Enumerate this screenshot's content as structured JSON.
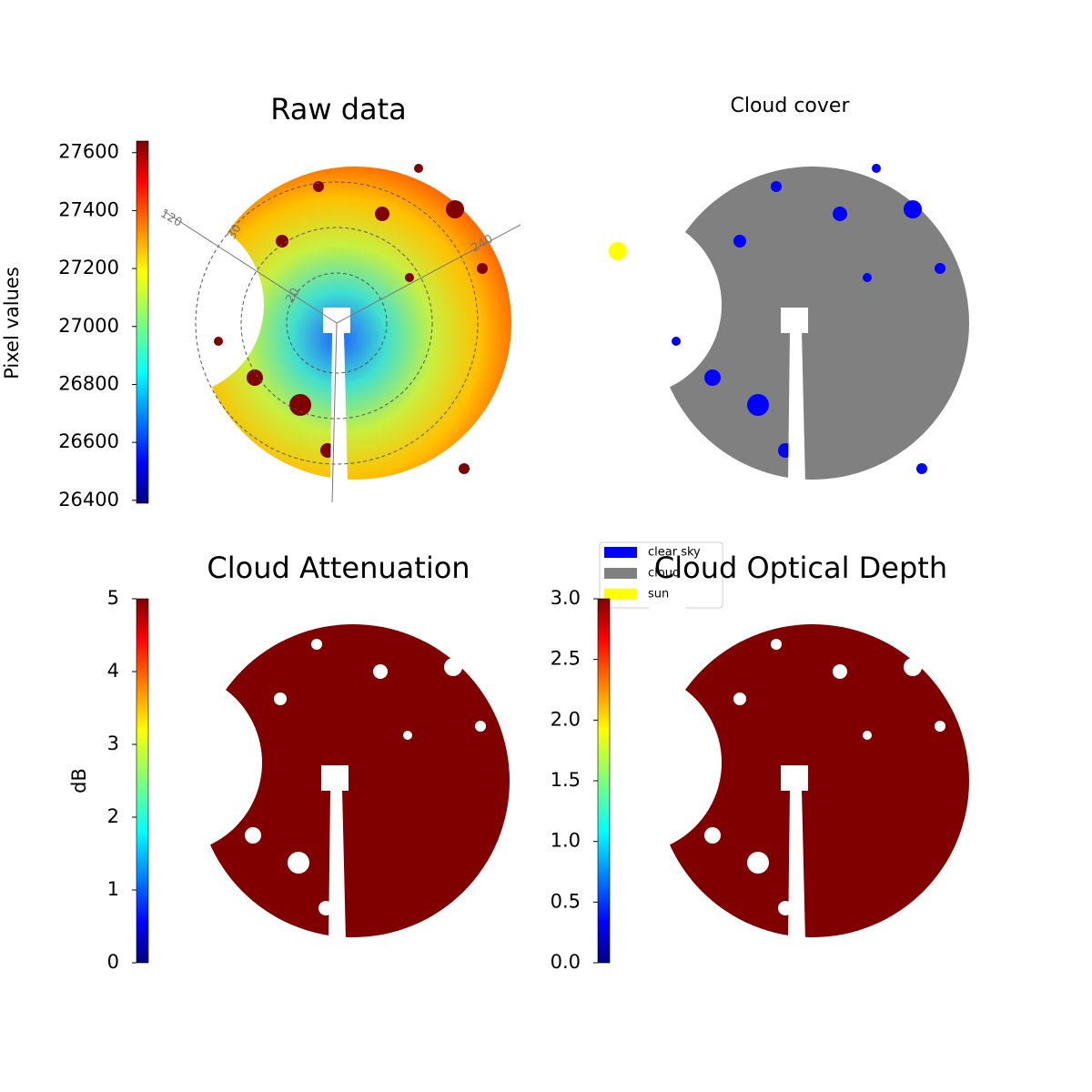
{
  "chart_data": [
    {
      "type": "image",
      "title": "Raw data",
      "colormap": "jet",
      "image_fill": "jet-field",
      "colorbar_label": "Pixel values",
      "ylim": [
        26390,
        27640
      ],
      "yticks": [
        26400,
        26600,
        26800,
        27000,
        27200,
        27400,
        27600
      ],
      "annotations": [
        "120",
        "30",
        "240",
        "20"
      ]
    },
    {
      "type": "image",
      "title": "Cloud cover",
      "image_fill": "#808080",
      "series": [
        {
          "name": "clear sky",
          "color": "#0000ff"
        },
        {
          "name": "cloud",
          "color": "#808080"
        },
        {
          "name": "sun",
          "color": "#ffff00"
        }
      ]
    },
    {
      "type": "image",
      "title": "Cloud Attenuation",
      "colormap": "jet",
      "image_fill": "#800000",
      "colorbar_label": "dB",
      "ylim": [
        0,
        5
      ],
      "yticks": [
        0,
        1,
        2,
        3,
        4,
        5
      ]
    },
    {
      "type": "image",
      "title": "Cloud Optical Depth",
      "colormap": "jet",
      "image_fill": "#800000",
      "ylim": [
        0,
        3
      ],
      "yticks": [
        {
          "value": 0,
          "label": "0.0"
        },
        {
          "value": 0.5,
          "label": "0.5"
        },
        {
          "value": 1,
          "label": "1.0"
        },
        {
          "value": 1.5,
          "label": "1.5"
        },
        {
          "value": 2,
          "label": "2.0"
        },
        {
          "value": 2.5,
          "label": "2.5"
        },
        {
          "value": 3,
          "label": "3.0"
        }
      ]
    }
  ]
}
